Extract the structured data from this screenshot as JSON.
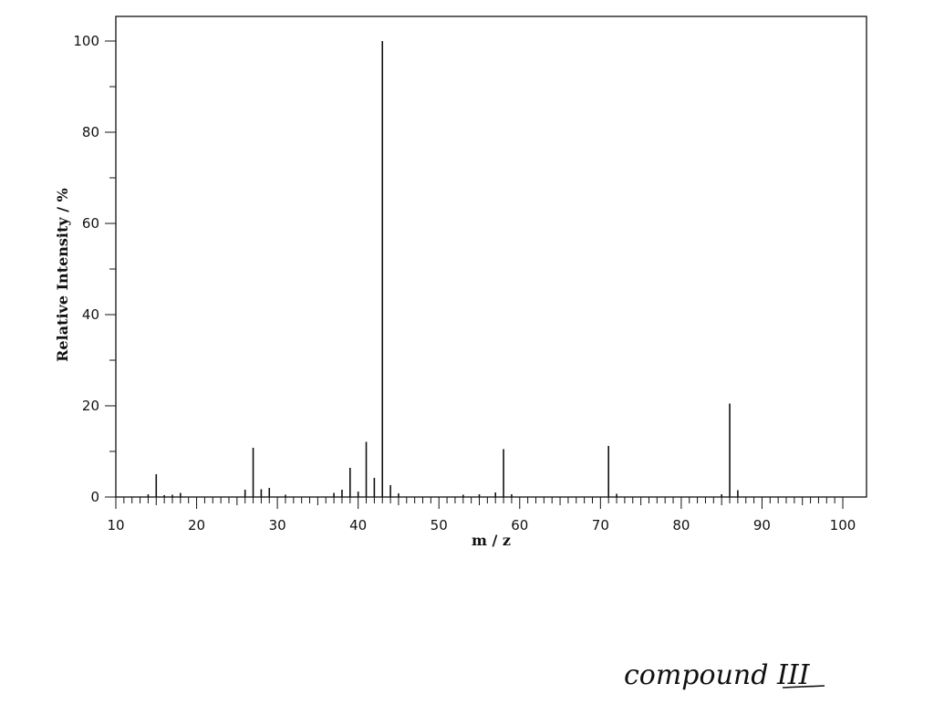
{
  "chart_data": {
    "type": "bar",
    "title": "",
    "xlabel": "m / z",
    "ylabel": "Relative Intensity / %",
    "xlim": [
      10,
      103
    ],
    "ylim": [
      0,
      105
    ],
    "xticks": [
      10,
      20,
      30,
      40,
      50,
      60,
      70,
      80,
      90,
      100
    ],
    "yticks": [
      0,
      20,
      40,
      60,
      80,
      100
    ],
    "grid": false,
    "legend": "none",
    "series": [
      {
        "x": [
          14,
          15,
          16,
          17,
          18,
          26,
          27,
          28,
          29,
          31,
          37,
          38,
          39,
          40,
          41,
          42,
          43,
          44,
          45,
          53,
          55,
          57,
          58,
          59,
          71,
          72,
          85,
          86,
          87
        ],
        "values": [
          0.6,
          5.0,
          0.4,
          0.5,
          0.9,
          1.6,
          10.8,
          1.7,
          2.0,
          0.5,
          0.9,
          1.6,
          6.4,
          1.2,
          12.1,
          4.2,
          100,
          2.6,
          0.8,
          0.5,
          0.6,
          1.0,
          10.5,
          0.6,
          11.2,
          0.7,
          0.6,
          20.5,
          1.5
        ]
      }
    ],
    "color": "#111111"
  },
  "annotation": {
    "text": "compound III"
  }
}
